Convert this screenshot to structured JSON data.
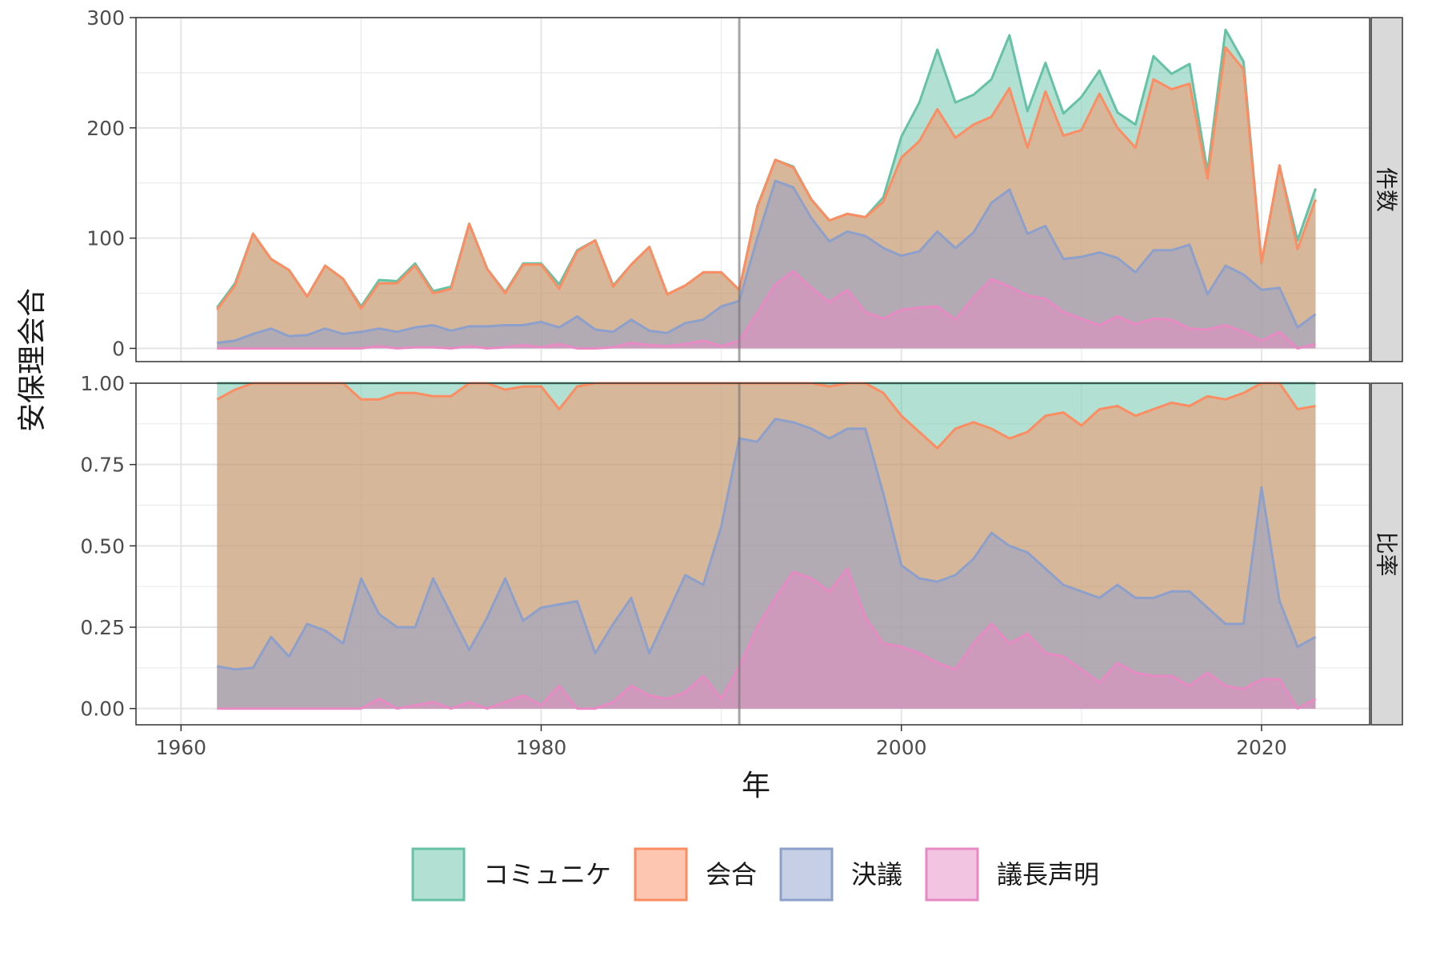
{
  "chart_data": {
    "type": "area",
    "xlabel": "年",
    "ylabel": "安保理会合",
    "xlim": [
      1957.5,
      2026
    ],
    "x_ticks": [
      1960,
      1980,
      2000,
      2020
    ],
    "vline_x": 1991,
    "grid": true,
    "legend_position": "bottom",
    "colors": {
      "コミュニケ": "#66C2A5",
      "会合": "#FC8D62",
      "決議": "#8DA0CB",
      "議長声明": "#E78AC3"
    },
    "legend": [
      "コミュニケ",
      "会合",
      "決議",
      "議長声明"
    ],
    "years": [
      1962,
      1963,
      1964,
      1965,
      1966,
      1967,
      1968,
      1969,
      1970,
      1971,
      1972,
      1973,
      1974,
      1975,
      1976,
      1977,
      1978,
      1979,
      1980,
      1981,
      1982,
      1983,
      1984,
      1985,
      1986,
      1987,
      1988,
      1989,
      1990,
      1991,
      1992,
      1993,
      1994,
      1995,
      1996,
      1997,
      1998,
      1999,
      2000,
      2001,
      2002,
      2003,
      2004,
      2005,
      2006,
      2007,
      2008,
      2009,
      2010,
      2011,
      2012,
      2013,
      2014,
      2015,
      2016,
      2017,
      2018,
      2019,
      2020,
      2021,
      2022,
      2023
    ],
    "panels": [
      {
        "strip": "件数",
        "ylim": [
          -12,
          300
        ],
        "y_ticks": [
          0,
          100,
          200,
          300
        ],
        "y_tick_labels": [
          "0",
          "100",
          "200",
          "300"
        ],
        "series": [
          {
            "name": "議長声明",
            "values": [
              0,
              0,
              0,
              0,
              0,
              0,
              0,
              0,
              0,
              2,
              0,
              1,
              1,
              0,
              2,
              0,
              1,
              3,
              1,
              4,
              0,
              0,
              1,
              5,
              3,
              2,
              4,
              7,
              2,
              7,
              32,
              58,
              70,
              55,
              42,
              53,
              33,
              27,
              35,
              37,
              38,
              26,
              46,
              63,
              56,
              48,
              45,
              33,
              27,
              21,
              29,
              22,
              27,
              26,
              18,
              17,
              21,
              15,
              7,
              15,
              0,
              4
            ]
          },
          {
            "name": "決議",
            "values": [
              5,
              7,
              13,
              18,
              11,
              12,
              18,
              13,
              15,
              18,
              15,
              19,
              21,
              16,
              20,
              20,
              21,
              21,
              24,
              19,
              29,
              17,
              15,
              26,
              16,
              14,
              23,
              26,
              38,
              43,
              100,
              152,
              146,
              118,
              97,
              106,
              102,
              91,
              84,
              88,
              106,
              91,
              105,
              132,
              144,
              104,
              111,
              81,
              83,
              87,
              82,
              69,
              89,
              89,
              94,
              49,
              75,
              67,
              53,
              55,
              19,
              31
            ]
          },
          {
            "name": "会合",
            "values": [
              35,
              57,
              104,
              81,
              71,
              47,
              75,
              63,
              36,
              59,
              59,
              75,
              50,
              54,
              113,
              72,
              50,
              76,
              76,
              54,
              88,
              98,
              56,
              76,
              92,
              49,
              57,
              69,
              69,
              53,
              128,
              171,
              164,
              135,
              116,
              122,
              119,
              133,
              173,
              188,
              217,
              191,
              203,
              210,
              236,
              182,
              233,
              193,
              198,
              231,
              200,
              182,
              244,
              235,
              240,
              154,
              273,
              253,
              78,
              166,
              90,
              135
            ]
          },
          {
            "name": "コミュニケ",
            "values": [
              37,
              59,
              104,
              81,
              71,
              47,
              75,
              63,
              38,
              62,
              61,
              77,
              52,
              56,
              113,
              72,
              51,
              77,
              77,
              58,
              89,
              98,
              57,
              76,
              92,
              49,
              57,
              69,
              69,
              53,
              129,
              171,
              165,
              135,
              116,
              122,
              119,
              137,
              192,
              223,
              271,
              223,
              230,
              244,
              284,
              215,
              259,
              213,
              228,
              252,
              214,
              203,
              265,
              249,
              258,
              160,
              289,
              260,
              77,
              165,
              98,
              145
            ]
          }
        ]
      },
      {
        "strip": "比率",
        "ylim": [
          -0.05,
          1.0
        ],
        "y_ticks": [
          0,
          0.25,
          0.5,
          0.75,
          1.0
        ],
        "y_tick_labels": [
          "0.00",
          "0.25",
          "0.50",
          "0.75",
          "1.00"
        ],
        "series": [
          {
            "name": "議長声明",
            "values": [
              0,
              0,
              0,
              0,
              0,
              0,
              0,
              0,
              0,
              0.03,
              0,
              0.01,
              0.02,
              0,
              0.02,
              0,
              0.02,
              0.04,
              0.01,
              0.07,
              0,
              0,
              0.02,
              0.07,
              0.04,
              0.03,
              0.05,
              0.1,
              0.03,
              0.13,
              0.25,
              0.34,
              0.42,
              0.4,
              0.36,
              0.43,
              0.28,
              0.2,
              0.19,
              0.17,
              0.14,
              0.12,
              0.2,
              0.26,
              0.2,
              0.23,
              0.17,
              0.16,
              0.12,
              0.08,
              0.14,
              0.11,
              0.1,
              0.1,
              0.07,
              0.11,
              0.07,
              0.06,
              0.09,
              0.09,
              0,
              0.03
            ]
          },
          {
            "name": "決議",
            "values": [
              0.13,
              0.12,
              0.125,
              0.22,
              0.16,
              0.26,
              0.24,
              0.2,
              0.4,
              0.29,
              0.25,
              0.25,
              0.4,
              0.29,
              0.18,
              0.28,
              0.4,
              0.27,
              0.31,
              0.32,
              0.33,
              0.17,
              0.26,
              0.34,
              0.17,
              0.29,
              0.41,
              0.38,
              0.56,
              0.83,
              0.82,
              0.89,
              0.88,
              0.86,
              0.83,
              0.86,
              0.86,
              0.66,
              0.44,
              0.4,
              0.39,
              0.41,
              0.46,
              0.54,
              0.5,
              0.48,
              0.43,
              0.38,
              0.36,
              0.34,
              0.38,
              0.34,
              0.34,
              0.36,
              0.36,
              0.31,
              0.26,
              0.26,
              0.68,
              0.33,
              0.19,
              0.22
            ]
          },
          {
            "name": "会合",
            "values": [
              0.95,
              0.98,
              1,
              1,
              1,
              1,
              1,
              1,
              0.95,
              0.95,
              0.97,
              0.97,
              0.96,
              0.96,
              1,
              1,
              0.98,
              0.99,
              0.99,
              0.92,
              0.99,
              1,
              1,
              1,
              1,
              1,
              1,
              1,
              1,
              1,
              1,
              1,
              1,
              1,
              0.99,
              1,
              1,
              0.97,
              0.9,
              0.85,
              0.8,
              0.86,
              0.88,
              0.86,
              0.83,
              0.85,
              0.9,
              0.91,
              0.87,
              0.92,
              0.93,
              0.9,
              0.92,
              0.94,
              0.93,
              0.96,
              0.95,
              0.97,
              1,
              1,
              0.92,
              0.93
            ]
          },
          {
            "name": "コミュニケ",
            "values": [
              1,
              1,
              1,
              1,
              1,
              1,
              1,
              1,
              1,
              1,
              1,
              1,
              1,
              1,
              1,
              1,
              1,
              1,
              1,
              1,
              1,
              1,
              1,
              1,
              1,
              1,
              1,
              1,
              1,
              1,
              1,
              1,
              1,
              1,
              1,
              1,
              1,
              1,
              1,
              1,
              1,
              1,
              1,
              1,
              1,
              1,
              1,
              1,
              1,
              1,
              1,
              1,
              1,
              1,
              1,
              1,
              1,
              1,
              1,
              1,
              1,
              1
            ]
          }
        ]
      }
    ]
  }
}
